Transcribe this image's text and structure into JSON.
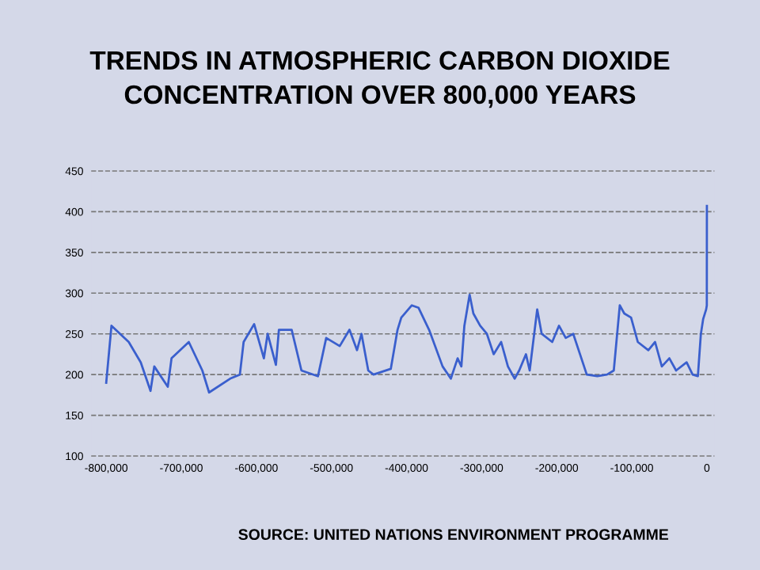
{
  "chart_data": {
    "type": "line",
    "title": "TRENDS IN ATMOSPHERIC CARBON DIOXIDE\nCONCENTRATION OVER 800,000 YEARS",
    "x": [
      -800000,
      -793000,
      -770000,
      -754000,
      -741000,
      -736000,
      -718000,
      -713000,
      -690000,
      -672000,
      -663000,
      -635000,
      -622000,
      -617000,
      -603000,
      -590000,
      -585000,
      -574000,
      -570000,
      -553000,
      -540000,
      -518000,
      -507000,
      -489000,
      -476000,
      -466000,
      -460000,
      -451000,
      -444000,
      -421000,
      -412000,
      -407000,
      -393000,
      -384000,
      -370000,
      -352000,
      -341000,
      -332000,
      -327000,
      -323000,
      -316000,
      -311000,
      -302000,
      -293000,
      -284000,
      -274000,
      -265000,
      -256000,
      -250000,
      -241000,
      -236000,
      -226000,
      -220000,
      -206000,
      -197000,
      -188000,
      -178000,
      -169000,
      -160000,
      -146000,
      -133000,
      -124000,
      -116000,
      -110000,
      -101000,
      -92000,
      -78000,
      -69000,
      -60000,
      -50000,
      -41000,
      -27000,
      -19000,
      -12000,
      -8000,
      -5000,
      -1000,
      -100,
      0
    ],
    "series": [
      {
        "color": "#3a5fcd",
        "values": [
          190,
          260,
          240,
          215,
          180,
          210,
          185,
          220,
          240,
          205,
          178,
          195,
          200,
          240,
          262,
          220,
          250,
          212,
          255,
          255,
          205,
          198,
          245,
          235,
          255,
          230,
          250,
          205,
          200,
          207,
          255,
          270,
          285,
          282,
          255,
          210,
          195,
          220,
          210,
          260,
          298,
          275,
          260,
          250,
          225,
          240,
          210,
          195,
          205,
          225,
          205,
          280,
          250,
          240,
          260,
          245,
          250,
          225,
          200,
          198,
          200,
          205,
          285,
          275,
          270,
          240,
          230,
          240,
          210,
          220,
          205,
          215,
          200,
          198,
          250,
          268,
          280,
          285,
          407
        ]
      }
    ],
    "xlim": [
      -820000,
      10000
    ],
    "ylim": [
      100,
      450
    ],
    "xticks": [
      {
        "value": -800000,
        "label": "-800,000"
      },
      {
        "value": -700000,
        "label": "-700,000"
      },
      {
        "value": -600000,
        "label": "-600,000"
      },
      {
        "value": -500000,
        "label": "-500,000"
      },
      {
        "value": -400000,
        "label": "-400,000"
      },
      {
        "value": -300000,
        "label": "-300,000"
      },
      {
        "value": -200000,
        "label": "-200,000"
      },
      {
        "value": -100000,
        "label": "-100,000"
      },
      0
    ],
    "yticks": [
      100,
      150,
      200,
      250,
      300,
      350,
      400,
      450
    ],
    "grid": "y",
    "line_style": "solid",
    "marker": "none",
    "annotations": [
      "SOURCE: UNITED NATIONS ENVIRONMENT PROGRAMME"
    ]
  }
}
